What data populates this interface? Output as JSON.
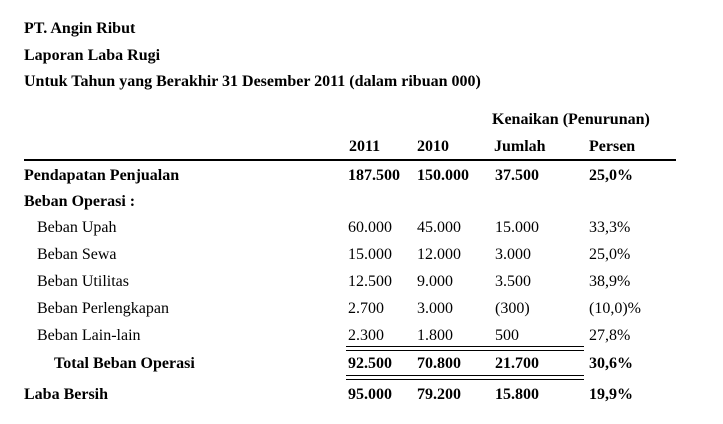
{
  "header": {
    "company": "PT. Angin Ribut",
    "report": "Laporan Laba Rugi",
    "period": "Untuk Tahun yang Berakhir 31 Desember 2011 (dalam ribuan 000)"
  },
  "columns": {
    "group": "Kenaikan (Penurunan)",
    "y2011": "2011",
    "y2010": "2010",
    "amount": "Jumlah",
    "percent": "Persen"
  },
  "rows": [
    {
      "label": "Pendapatan Penjualan",
      "v2011": "187.500",
      "v2010": "150.000",
      "amount": "37.500",
      "percent": "25,0%"
    },
    {
      "label": "Beban Operasi :",
      "v2011": "",
      "v2010": "",
      "amount": "",
      "percent": ""
    },
    {
      "label": "Beban Upah",
      "v2011": "60.000",
      "v2010": "45.000",
      "amount": "15.000",
      "percent": "33,3%"
    },
    {
      "label": "Beban Sewa",
      "v2011": "15.000",
      "v2010": "12.000",
      "amount": "3.000",
      "percent": "25,0%"
    },
    {
      "label": "Beban Utilitas",
      "v2011": "12.500",
      "v2010": "9.000",
      "amount": "3.500",
      "percent": "38,9%"
    },
    {
      "label": "Beban Perlengkapan",
      "v2011": "2.700",
      "v2010": "3.000",
      "amount": "(300)",
      "percent": "(10,0)%"
    },
    {
      "label": "Beban Lain-lain",
      "v2011": "2.300",
      "v2010": "1.800",
      "amount": "500",
      "percent": "27,8%"
    },
    {
      "label": "Total Beban Operasi",
      "v2011": "92.500",
      "v2010": "70.800",
      "amount": "21.700",
      "percent": "30,6%"
    },
    {
      "label": "Laba Bersih",
      "v2011": "95.000",
      "v2010": "79.200",
      "amount": "15.800",
      "percent": "19,9%"
    }
  ]
}
